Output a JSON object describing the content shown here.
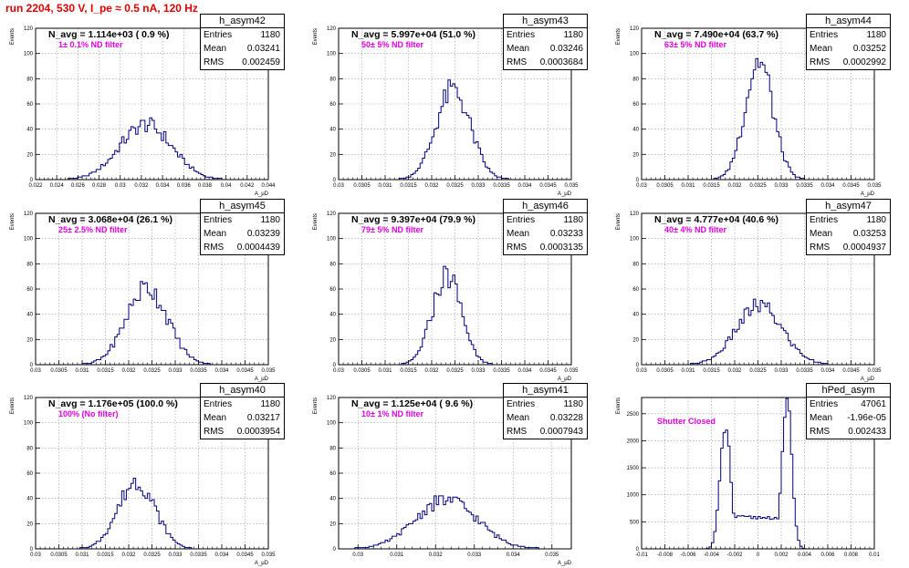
{
  "title": "run 2204,   530 V, I_pe ≈ 0.5 nA, 120 Hz",
  "colors": {
    "title": "#e00000",
    "histogram": "#000080",
    "annotation": "#e000e0",
    "grid": "#999999"
  },
  "chart_data": [
    {
      "type": "histogram",
      "name": "h_asym42",
      "summary": "N_avg = 1.114e+03 ( 0.9 %)",
      "annotation": "1± 0.1% ND filter",
      "stats": [
        [
          "Entries",
          "1180"
        ],
        [
          "Mean",
          "0.03241"
        ],
        [
          "RMS",
          "0.002459"
        ]
      ],
      "ylabel": "Events",
      "xlabel": "A_μD",
      "xlim": [
        0.022,
        0.044
      ],
      "ylim": [
        0,
        120
      ],
      "xticks": [
        "0.022",
        "0.024",
        "0.026",
        "0.028",
        "0.03",
        "0.032",
        "0.034",
        "0.036",
        "0.038",
        "0.04",
        "0.042",
        "0.044"
      ],
      "yticks": [
        "0",
        "20",
        "40",
        "60",
        "80",
        "100",
        "120"
      ],
      "mean": 0.03241,
      "rms": 0.002459,
      "peak": 45
    },
    {
      "type": "histogram",
      "name": "h_asym43",
      "summary": "N_avg = 5.997e+04 (51.0 %)",
      "annotation": "50± 5% ND filter",
      "stats": [
        [
          "Entries",
          "1180"
        ],
        [
          "Mean",
          "0.03246"
        ],
        [
          "RMS",
          "0.0003684"
        ]
      ],
      "ylabel": "Events",
      "xlabel": "A_μD",
      "xlim": [
        0.03,
        0.035
      ],
      "ylim": [
        0,
        120
      ],
      "xticks": [
        "0.03",
        "0.0305",
        "0.031",
        "0.0315",
        "0.032",
        "0.0325",
        "0.033",
        "0.0335",
        "0.034",
        "0.0345",
        "0.035"
      ],
      "yticks": [
        "0",
        "20",
        "40",
        "60",
        "80",
        "100",
        "120"
      ],
      "mean": 0.03246,
      "rms": 0.0003684,
      "peak": 73
    },
    {
      "type": "histogram",
      "name": "h_asym44",
      "summary": "N_avg = 7.490e+04 (63.7 %)",
      "annotation": "63± 5% ND filter",
      "stats": [
        [
          "Entries",
          "1180"
        ],
        [
          "Mean",
          "0.03252"
        ],
        [
          "RMS",
          "0.0002992"
        ]
      ],
      "ylabel": "Events",
      "xlabel": "A_μD",
      "xlim": [
        0.03,
        0.035
      ],
      "ylim": [
        0,
        120
      ],
      "xticks": [
        "0.03",
        "0.0305",
        "0.031",
        "0.0315",
        "0.032",
        "0.0325",
        "0.033",
        "0.0335",
        "0.034",
        "0.0345",
        "0.035"
      ],
      "yticks": [
        "0",
        "20",
        "40",
        "60",
        "80",
        "100",
        "120"
      ],
      "mean": 0.03252,
      "rms": 0.0002992,
      "peak": 97
    },
    {
      "type": "histogram",
      "name": "h_asym45",
      "summary": "N_avg = 3.068e+04 (26.1 %)",
      "annotation": "25± 2.5% ND filter",
      "stats": [
        [
          "Entries",
          "1180"
        ],
        [
          "Mean",
          "0.03239"
        ],
        [
          "RMS",
          "0.0004439"
        ]
      ],
      "ylabel": "Events",
      "xlabel": "A_μD",
      "xlim": [
        0.03,
        0.035
      ],
      "ylim": [
        0,
        120
      ],
      "xticks": [
        "0.03",
        "0.0305",
        "0.031",
        "0.0315",
        "0.032",
        "0.0325",
        "0.033",
        "0.0335",
        "0.034",
        "0.0345",
        "0.035"
      ],
      "yticks": [
        "0",
        "20",
        "40",
        "60",
        "80",
        "100",
        "120"
      ],
      "mean": 0.03239,
      "rms": 0.0004439,
      "peak": 63
    },
    {
      "type": "histogram",
      "name": "h_asym46",
      "summary": "N_avg = 9.397e+04 (79.9 %)",
      "annotation": "79± 5% ND filter",
      "stats": [
        [
          "Entries",
          "1180"
        ],
        [
          "Mean",
          "0.03233"
        ],
        [
          "RMS",
          "0.0003135"
        ]
      ],
      "ylabel": "Events",
      "xlabel": "A_μD",
      "xlim": [
        0.03,
        0.035
      ],
      "ylim": [
        0,
        120
      ],
      "xticks": [
        "0.03",
        "0.0305",
        "0.031",
        "0.0315",
        "0.032",
        "0.0325",
        "0.033",
        "0.0335",
        "0.034",
        "0.0345",
        "0.035"
      ],
      "yticks": [
        "0",
        "20",
        "40",
        "60",
        "80",
        "100",
        "120"
      ],
      "mean": 0.03233,
      "rms": 0.0003135,
      "peak": 73
    },
    {
      "type": "histogram",
      "name": "h_asym47",
      "summary": "N_avg = 4.777e+04 (40.6 %)",
      "annotation": "40± 4% ND filter",
      "stats": [
        [
          "Entries",
          "1180"
        ],
        [
          "Mean",
          "0.03253"
        ],
        [
          "RMS",
          "0.0004937"
        ]
      ],
      "ylabel": "Events",
      "xlabel": "A_μD",
      "xlim": [
        0.03,
        0.035
      ],
      "ylim": [
        0,
        120
      ],
      "xticks": [
        "0.03",
        "0.0305",
        "0.031",
        "0.0315",
        "0.032",
        "0.0325",
        "0.033",
        "0.0335",
        "0.034",
        "0.0345",
        "0.035"
      ],
      "yticks": [
        "0",
        "20",
        "40",
        "60",
        "80",
        "100",
        "120"
      ],
      "mean": 0.03253,
      "rms": 0.0004937,
      "peak": 48
    },
    {
      "type": "histogram",
      "name": "h_asym40",
      "summary": "N_avg = 1.176e+05 (100.0 %)",
      "annotation": "100% (No filter)",
      "stats": [
        [
          "Entries",
          "1180"
        ],
        [
          "Mean",
          "0.03217"
        ],
        [
          "RMS",
          "0.0003954"
        ]
      ],
      "ylabel": "Events",
      "xlabel": "A_μD",
      "xlim": [
        0.03,
        0.035
      ],
      "ylim": [
        0,
        120
      ],
      "xticks": [
        "0.03",
        "0.0305",
        "0.031",
        "0.0315",
        "0.032",
        "0.0325",
        "0.033",
        "0.0335",
        "0.034",
        "0.0345",
        "0.035"
      ],
      "yticks": [
        "0",
        "20",
        "40",
        "60",
        "80",
        "100",
        "120"
      ],
      "mean": 0.03217,
      "rms": 0.0003954,
      "peak": 55
    },
    {
      "type": "histogram",
      "name": "h_asym41",
      "summary": "N_avg = 1.125e+04 ( 9.6 %)",
      "annotation": "10± 1% ND filter",
      "stats": [
        [
          "Entries",
          "1180"
        ],
        [
          "Mean",
          "0.03228"
        ],
        [
          "RMS",
          "0.0007943"
        ]
      ],
      "ylabel": "Events",
      "xlabel": "A_μD",
      "xlim": [
        0.0295,
        0.0355
      ],
      "ylim": [
        0,
        120
      ],
      "xticks": [
        "0.03",
        "0.031",
        "0.032",
        "0.033",
        "0.034",
        "0.035"
      ],
      "xtick_values": [
        0.03,
        0.031,
        0.032,
        0.033,
        0.034,
        0.035
      ],
      "yticks": [
        "0",
        "20",
        "40",
        "60",
        "80",
        "100",
        "120"
      ],
      "mean": 0.03228,
      "rms": 0.0007943,
      "peak": 40
    },
    {
      "type": "histogram",
      "name": "hPed_asym",
      "summary": "",
      "annotation": "Shutter Closed",
      "stats": [
        [
          "Entries",
          "47061"
        ],
        [
          "Mean",
          "-1.96e-05"
        ],
        [
          "RMS",
          "0.002433"
        ]
      ],
      "ylabel": "Events",
      "xlabel": "",
      "xlim": [
        -0.01,
        0.01
      ],
      "ylim": [
        0,
        2800
      ],
      "xticks": [
        "-0.01",
        "-0.008",
        "-0.006",
        "-0.004",
        "-0.002",
        "0",
        "0.002",
        "0.004",
        "0.006",
        "0.008",
        "0.01"
      ],
      "yticks": [
        "0",
        "500",
        "1000",
        "1500",
        "2000",
        "2500"
      ],
      "bimodal": {
        "left_peak_x": -0.0028,
        "left_peak": 2270,
        "right_peak_x": 0.0025,
        "right_peak": 2700,
        "valley": 580
      }
    }
  ]
}
